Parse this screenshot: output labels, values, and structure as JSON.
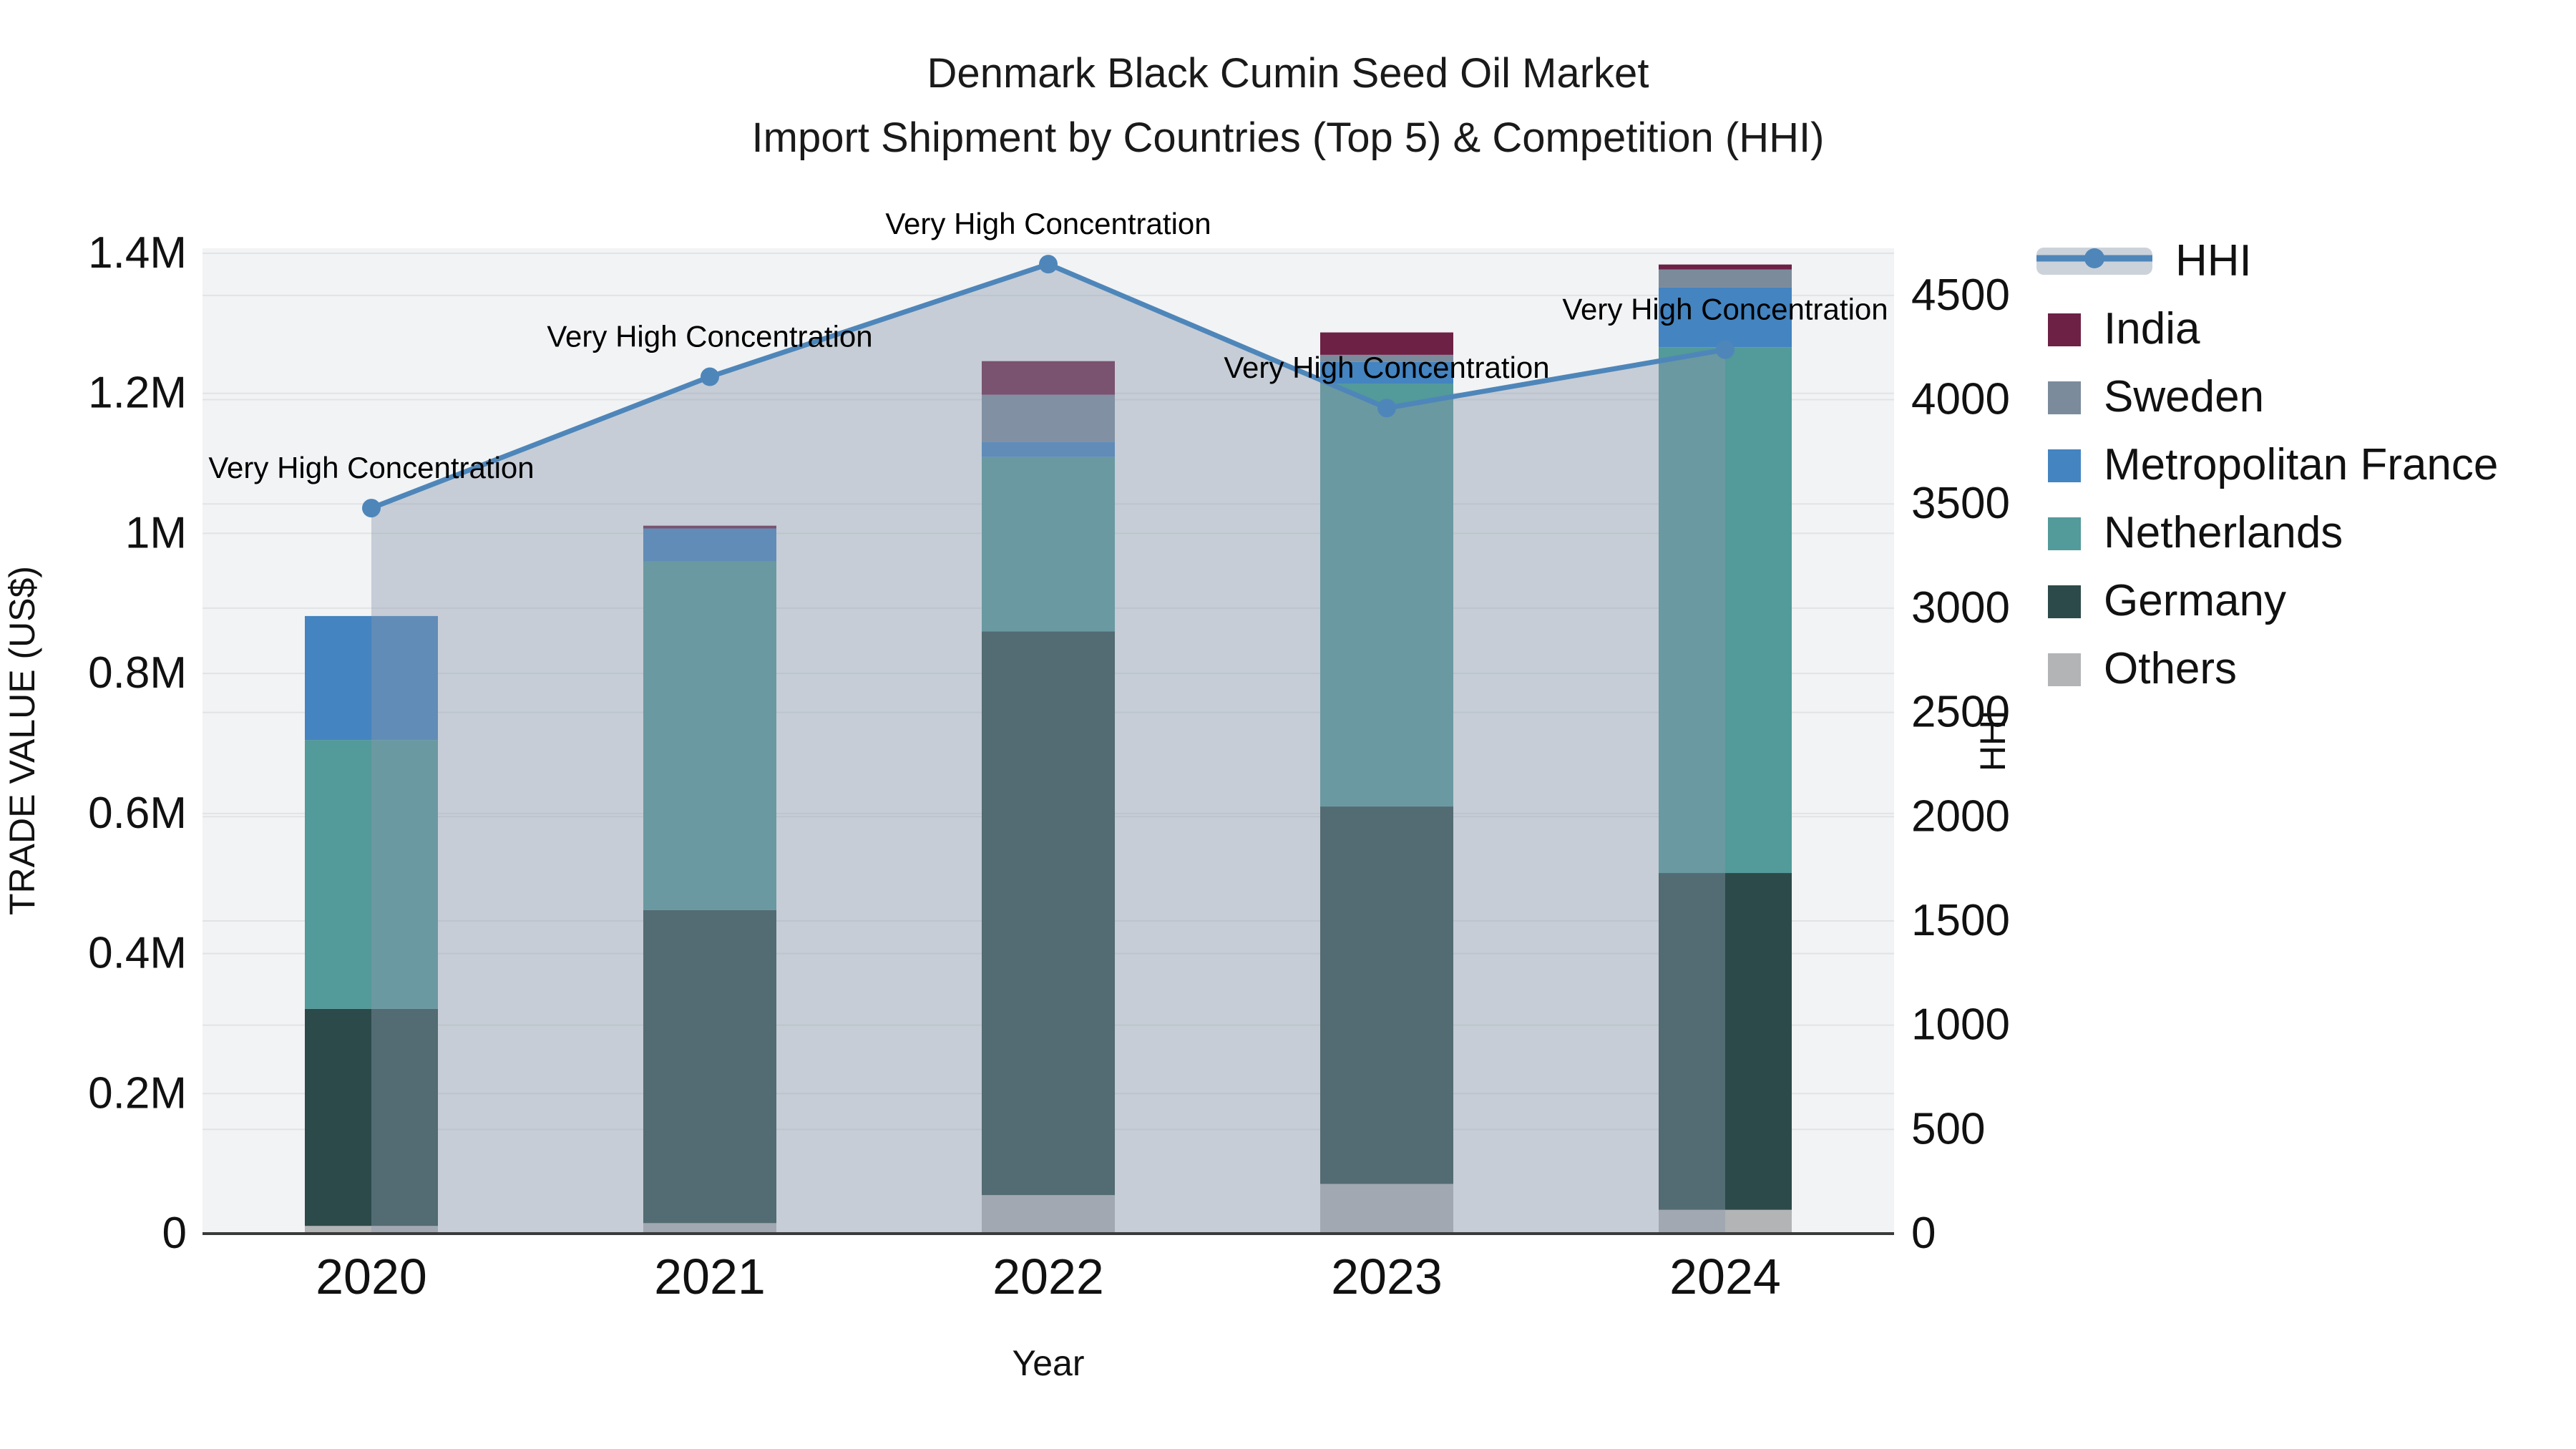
{
  "title": {
    "line1": "Denmark Black Cumin Seed Oil Market",
    "line2": "Import Shipment by Countries (Top 5) & Competition (HHI)"
  },
  "axes": {
    "y_left_title": "TRADE VALUE (US$)",
    "y_right_title": "HHI",
    "x_title": "Year",
    "y_left_ticks": [
      "0",
      "0.2M",
      "0.4M",
      "0.6M",
      "0.8M",
      "1M",
      "1.2M",
      "1.4M"
    ],
    "y_left_tick_values": [
      0,
      0.2,
      0.4,
      0.6,
      0.8,
      1.0,
      1.2,
      1.4
    ],
    "y_right_ticks": [
      "0",
      "500",
      "1000",
      "1500",
      "2000",
      "2500",
      "3000",
      "3500",
      "4000",
      "4500"
    ],
    "y_right_tick_values": [
      0,
      500,
      1000,
      1500,
      2000,
      2500,
      3000,
      3500,
      4000,
      4500
    ]
  },
  "legend": {
    "items": [
      {
        "label": "HHI",
        "type": "line",
        "color": "#4e86ba"
      },
      {
        "label": "India",
        "type": "swatch",
        "color": "#6d2145"
      },
      {
        "label": "Sweden",
        "type": "swatch",
        "color": "#7b8b9c"
      },
      {
        "label": "Metropolitan France",
        "type": "swatch",
        "color": "#4484c0"
      },
      {
        "label": "Netherlands",
        "type": "swatch",
        "color": "#539a9a"
      },
      {
        "label": "Germany",
        "type": "swatch",
        "color": "#2c4a49"
      },
      {
        "label": "Others",
        "type": "swatch",
        "color": "#b2b4b5"
      }
    ]
  },
  "chart_data": {
    "type": "bar+line combo (stacked bars left axis, HHI line right axis, shaded area under line)",
    "categories": [
      "2020",
      "2021",
      "2022",
      "2023",
      "2024"
    ],
    "bar_unit": "M US$",
    "series": [
      {
        "name": "Others",
        "color": "#b2b4b5",
        "values": [
          0.011,
          0.015,
          0.055,
          0.071,
          0.034
        ]
      },
      {
        "name": "Germany",
        "color": "#2c4a49",
        "values": [
          0.31,
          0.447,
          0.805,
          0.539,
          0.481
        ]
      },
      {
        "name": "Netherlands",
        "color": "#539a9a",
        "values": [
          0.384,
          0.498,
          0.249,
          0.604,
          0.751
        ]
      },
      {
        "name": "Metropolitan France",
        "color": "#4484c0",
        "values": [
          0.177,
          0.047,
          0.022,
          0.031,
          0.085
        ]
      },
      {
        "name": "Sweden",
        "color": "#7b8b9c",
        "values": [
          0,
          0,
          0.067,
          0.01,
          0.026
        ]
      },
      {
        "name": "India",
        "color": "#6d2145",
        "values": [
          0,
          0.004,
          0.048,
          0.032,
          0.007
        ]
      }
    ],
    "bar_totals": [
      0.882,
      1.011,
      1.246,
      1.287,
      1.384
    ],
    "line_series": {
      "name": "HHI",
      "color": "#4e86ba",
      "values": [
        3480,
        4110,
        4650,
        3960,
        4240
      ]
    },
    "annotations": [
      {
        "text": "Very High Concentration",
        "category": "2020"
      },
      {
        "text": "Very High Concentration",
        "category": "2021"
      },
      {
        "text": "Very High Concentration",
        "category": "2022"
      },
      {
        "text": "Very High Concentration",
        "category": "2023"
      },
      {
        "text": "Very High Concentration",
        "category": "2024"
      }
    ],
    "ylabel_left": "TRADE VALUE (US$)",
    "ylabel_right": "HHI",
    "xlabel": "Year",
    "ylim_left": [
      0,
      1.407
    ],
    "ylim_right": [
      0,
      4727
    ],
    "grid": true,
    "legend_position": "right",
    "area_fill_color": "#8b98ac",
    "area_fill_opacity": 0.42,
    "plot_bg_color": "#f2f3f4",
    "gridline_color": "#e1e3e5",
    "axis_line_color": "#3a3a3a",
    "text_color": "#111111"
  }
}
